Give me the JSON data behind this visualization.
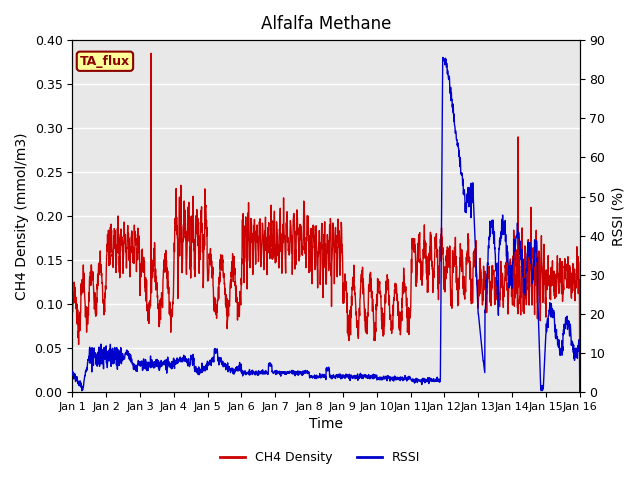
{
  "title": "Alfalfa Methane",
  "ylabel_left": "CH4 Density (mmol/m3)",
  "ylabel_right": "RSSI (%)",
  "xlabel": "Time",
  "ylim_left": [
    0,
    0.4
  ],
  "ylim_right": [
    0,
    90
  ],
  "xlim": [
    0,
    15
  ],
  "xtick_labels": [
    "Jan 1",
    "Jan 2",
    "Jan 3",
    "Jan 4",
    "Jan 5",
    "Jan 6",
    "Jan 7",
    "Jan 8",
    "Jan 9",
    "Jan 10",
    "Jan 11",
    "Jan 12",
    "Jan 13",
    "Jan 14",
    "Jan 15",
    "Jan 16"
  ],
  "yticks_left": [
    0.0,
    0.05,
    0.1,
    0.15,
    0.2,
    0.25,
    0.3,
    0.35,
    0.4
  ],
  "yticks_right": [
    0,
    10,
    20,
    30,
    40,
    50,
    60,
    70,
    80,
    90
  ],
  "ch4_color": "#cc0000",
  "rssi_color": "#0000cc",
  "bg_color": "#e8e8e8",
  "label_box_color": "#ffff99",
  "label_box_edge": "#8b0000",
  "label_text": "TA_flux",
  "legend_ch4": "CH4 Density",
  "legend_rssi": "RSSI",
  "linewidth": 1.0,
  "title_fontsize": 12,
  "axis_fontsize": 10,
  "tick_fontsize": 9,
  "xtick_fontsize": 8
}
